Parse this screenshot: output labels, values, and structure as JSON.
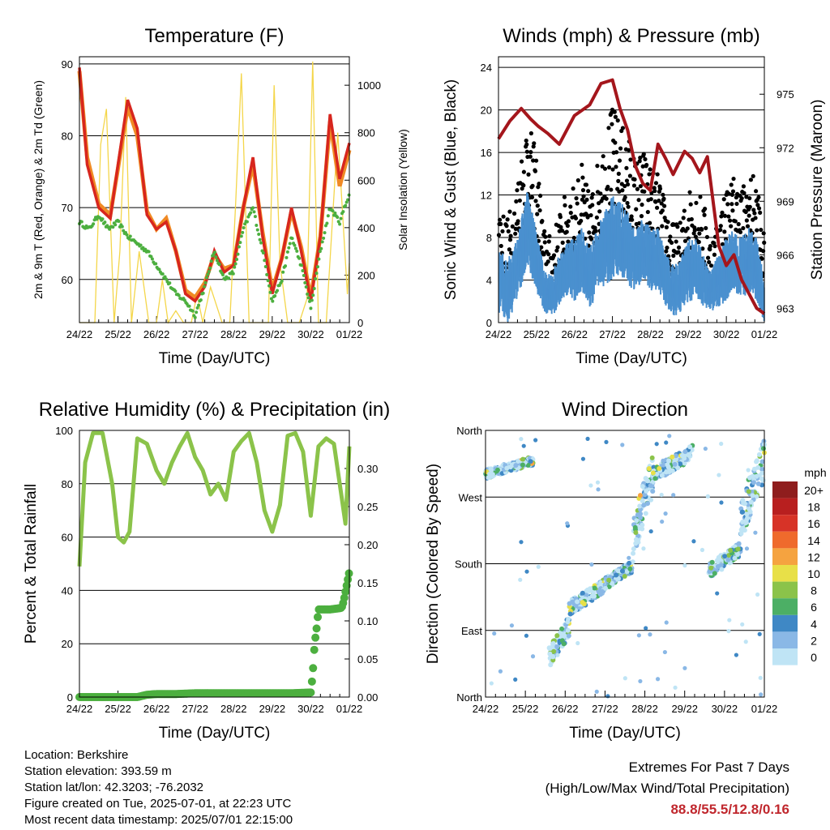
{
  "chart_data": [
    {
      "type": "line",
      "title": "Temperature (F)",
      "xlabel": "Time (Day/UTC)",
      "ylabel": "2m & 9m T (Red, Orange) & 2m Td (Green)",
      "ylabel_right": "Solar Insolation (Yellow)",
      "xticks": [
        "24/22",
        "25/22",
        "26/22",
        "27/22",
        "28/22",
        "29/22",
        "30/22",
        "01/22"
      ],
      "ylim": [
        54,
        91
      ],
      "yticks": [
        60,
        70,
        80,
        90
      ],
      "ylim_right": [
        0,
        1120
      ],
      "yticks_right": [
        0,
        200,
        400,
        600,
        800,
        1000
      ],
      "grid": true,
      "colors": {
        "t2m": "#d7261e",
        "t9m": "#f08a24",
        "td": "#4caf3f",
        "solar": "#f4d64a"
      },
      "series": [
        {
          "name": "2m T",
          "axis": "left",
          "x": [
            0,
            0.2,
            0.5,
            0.8,
            1.0,
            1.25,
            1.5,
            1.75,
            2.0,
            2.25,
            2.5,
            2.75,
            3.0,
            3.25,
            3.5,
            3.75,
            4.0,
            4.25,
            4.5,
            4.75,
            5.0,
            5.25,
            5.5,
            5.75,
            6.0,
            6.25,
            6.5,
            6.75,
            7.0
          ],
          "y": [
            89.5,
            76,
            70,
            68.5,
            76,
            85,
            81,
            69,
            67,
            68,
            64,
            58,
            57,
            59,
            64,
            61,
            62,
            70,
            77,
            66,
            58,
            63,
            70,
            64,
            57,
            66,
            83,
            74,
            79
          ]
        },
        {
          "name": "9m T",
          "axis": "left",
          "x": [
            0,
            0.2,
            0.5,
            0.8,
            1.0,
            1.25,
            1.5,
            1.75,
            2.0,
            2.25,
            2.5,
            2.75,
            3.0,
            3.25,
            3.5,
            3.75,
            4.0,
            4.25,
            4.5,
            4.75,
            5.0,
            5.25,
            5.5,
            5.75,
            6.0,
            6.25,
            6.5,
            6.75,
            7.0
          ],
          "y": [
            89,
            77,
            70.5,
            69,
            75.5,
            84,
            80,
            69.5,
            67,
            68.5,
            64,
            58.5,
            57.5,
            59.5,
            63.5,
            61.5,
            62,
            70,
            76,
            66.5,
            58.5,
            63,
            69.5,
            64.5,
            57.5,
            66,
            82,
            73,
            78
          ]
        },
        {
          "name": "2m Td",
          "axis": "left",
          "x": [
            0,
            0.25,
            0.5,
            0.75,
            1.0,
            1.25,
            1.5,
            1.75,
            2.0,
            2.25,
            2.5,
            2.75,
            3.0,
            3.25,
            3.5,
            3.75,
            4.0,
            4.25,
            4.5,
            4.75,
            5.0,
            5.25,
            5.5,
            5.75,
            6.0,
            6.25,
            6.5,
            6.75,
            7.0
          ],
          "y": [
            68,
            67,
            69,
            67,
            68,
            66,
            65,
            64,
            62,
            60,
            58,
            57,
            55,
            59,
            64,
            60,
            61,
            67,
            70,
            64,
            57,
            60,
            66,
            62,
            56,
            64,
            70,
            68,
            72
          ]
        },
        {
          "name": "Solar Insolation",
          "axis": "right",
          "x": [
            0,
            0.4,
            0.55,
            0.7,
            0.9,
            1.05,
            1.2,
            1.35,
            1.55,
            1.8,
            2.0,
            2.15,
            2.3,
            2.5,
            2.7,
            2.9,
            3.05,
            3.2,
            3.4,
            3.7,
            3.9,
            4.05,
            4.2,
            4.4,
            4.7,
            4.9,
            5.05,
            5.2,
            5.4,
            5.7,
            5.9,
            6.05,
            6.2,
            6.4,
            6.7,
            6.95,
            7.0
          ],
          "y": [
            0,
            0,
            750,
            900,
            0,
            300,
            950,
            0,
            300,
            0,
            0,
            180,
            0,
            50,
            0,
            0,
            120,
            0,
            150,
            0,
            0,
            500,
            1050,
            0,
            0,
            0,
            1000,
            250,
            0,
            0,
            100,
            1100,
            0,
            0,
            800,
            120,
            250
          ]
        }
      ]
    },
    {
      "type": "scatter",
      "title": "Winds (mph) & Pressure (mb)",
      "xlabel": "Time (Day/UTC)",
      "ylabel": "Sonic Wind & Gust (Blue, Black)",
      "ylabel_right": "Station Pressure (Maroon)",
      "xticks": [
        "24/22",
        "25/22",
        "26/22",
        "27/22",
        "28/22",
        "29/22",
        "30/22",
        "01/22"
      ],
      "ylim": [
        0,
        25
      ],
      "yticks": [
        0,
        4,
        8,
        12,
        16,
        20,
        24
      ],
      "ylim_right": [
        962.2,
        977.1
      ],
      "yticks_right": [
        963,
        966,
        969,
        972,
        975
      ],
      "grid": true,
      "colors": {
        "wind": "#4a90cf",
        "gust": "#000000",
        "pressure": "#a4161c"
      },
      "pressure": {
        "name": "Station Pressure",
        "x": [
          0,
          0.3,
          0.6,
          0.85,
          1.05,
          1.3,
          1.6,
          2.0,
          2.4,
          2.7,
          3.0,
          3.2,
          3.4,
          3.6,
          3.8,
          4.0,
          4.2,
          4.4,
          4.6,
          4.9,
          5.1,
          5.3,
          5.5,
          5.8,
          6.0,
          6.2,
          6.4,
          6.6,
          6.8,
          7.0
        ],
        "y": [
          972.5,
          973.5,
          974.2,
          973.6,
          973.2,
          972.8,
          972.2,
          973.8,
          974.4,
          975.6,
          975.8,
          974.2,
          973.0,
          971.0,
          970.0,
          969.6,
          972.2,
          971.4,
          970.5,
          971.8,
          971.4,
          970.6,
          971.5,
          966.5,
          965.4,
          966.0,
          964.6,
          963.8,
          963.0,
          962.7
        ]
      },
      "wind_envelope": {
        "x": [
          0,
          0.25,
          0.5,
          0.75,
          1.0,
          1.2,
          1.4,
          1.6,
          1.8,
          2.0,
          2.2,
          2.4,
          2.6,
          2.8,
          3.0,
          3.2,
          3.4,
          3.6,
          3.8,
          4.0,
          4.2,
          4.4,
          4.6,
          4.8,
          5.0,
          5.2,
          5.4,
          5.6,
          5.8,
          6.0,
          6.2,
          6.4,
          6.6,
          6.8,
          7.0
        ],
        "mean": [
          4,
          3,
          5,
          9,
          6,
          3,
          2.5,
          4,
          5,
          5,
          6,
          4,
          6,
          7,
          8,
          8,
          7,
          6,
          7,
          6,
          6,
          4,
          3,
          3.5,
          5,
          5,
          4,
          3,
          4,
          5,
          6,
          5,
          6,
          5,
          2
        ],
        "spread": [
          3,
          3,
          3,
          3.5,
          3,
          2,
          2,
          2.5,
          2.5,
          3,
          3,
          3,
          3,
          3.5,
          4,
          3.5,
          3.5,
          3,
          3,
          3,
          3,
          2.5,
          2.5,
          2.5,
          3,
          3,
          2.5,
          2,
          2.5,
          3,
          3,
          3,
          3,
          3,
          2
        ]
      },
      "gust_envelope": {
        "x": [
          0,
          0.25,
          0.5,
          0.75,
          1.0,
          1.2,
          1.4,
          1.6,
          1.8,
          2.0,
          2.2,
          2.4,
          2.6,
          2.8,
          3.0,
          3.2,
          3.4,
          3.6,
          3.8,
          4.0,
          4.2,
          4.4,
          4.6,
          4.8,
          5.0,
          5.2,
          5.4,
          5.6,
          5.8,
          6.0,
          6.2,
          6.4,
          6.6,
          6.8,
          7.0
        ],
        "mean": [
          8,
          6,
          10,
          15,
          12,
          6,
          5,
          7,
          9,
          9,
          11,
          8,
          11,
          13,
          15,
          14,
          13,
          11,
          12,
          11,
          10,
          8,
          6,
          6,
          9,
          9,
          8,
          5,
          7,
          9,
          10,
          9,
          10,
          10,
          5
        ],
        "spread": [
          4,
          4,
          4,
          4.5,
          4,
          3,
          3,
          3.5,
          3.5,
          4,
          4,
          4,
          4,
          5,
          5.5,
          5,
          5,
          4.5,
          4.5,
          4,
          4,
          3.5,
          3.5,
          3.5,
          4,
          4,
          3.5,
          3,
          3.5,
          4,
          4,
          4,
          4,
          4,
          3
        ]
      }
    },
    {
      "type": "line",
      "title": "Relative Humidity (%) & Precipitation (in)",
      "xlabel": "Time (Day/UTC)",
      "ylabel": "Percent & Total Rainfall",
      "xticks": [
        "24/22",
        "25/22",
        "26/22",
        "27/22",
        "28/22",
        "29/22",
        "30/22",
        "01/22"
      ],
      "ylim": [
        0,
        100
      ],
      "yticks": [
        0,
        20,
        40,
        60,
        80,
        100
      ],
      "ylim_right": [
        0,
        0.35
      ],
      "yticks_right": [
        "0.00",
        "0.05",
        "0.10",
        "0.15",
        "0.20",
        "0.25",
        "0.30"
      ],
      "grid": true,
      "colors": {
        "rh": "#8bc34a",
        "rain": "#4caf3f"
      },
      "series": [
        {
          "name": "Relative Humidity",
          "axis": "left",
          "x": [
            0,
            0.15,
            0.35,
            0.6,
            0.85,
            1.0,
            1.15,
            1.3,
            1.5,
            1.75,
            2.0,
            2.2,
            2.4,
            2.6,
            2.8,
            3.0,
            3.2,
            3.4,
            3.6,
            3.8,
            4.0,
            4.2,
            4.4,
            4.6,
            4.8,
            5.0,
            5.2,
            5.4,
            5.6,
            5.8,
            6.0,
            6.2,
            6.4,
            6.6,
            6.8,
            6.9,
            7.0
          ],
          "y": [
            49,
            88,
            99,
            99,
            80,
            60,
            58,
            62,
            97,
            95,
            85,
            80,
            88,
            94,
            99,
            90,
            85,
            76,
            80,
            74,
            92,
            96,
            99,
            88,
            70,
            62,
            72,
            98,
            99,
            92,
            68,
            94,
            97,
            95,
            75,
            65,
            94
          ]
        },
        {
          "name": "Total Rainfall",
          "axis": "right",
          "x": [
            0,
            1.0,
            1.5,
            1.75,
            2.0,
            2.5,
            3.0,
            3.5,
            4.0,
            4.5,
            5.0,
            5.5,
            6.0,
            6.05,
            6.1,
            6.15,
            6.2,
            6.5,
            6.8,
            6.85,
            7.0
          ],
          "y": [
            0,
            0,
            0,
            0.003,
            0.004,
            0.004,
            0.005,
            0.005,
            0.005,
            0.005,
            0.005,
            0.005,
            0.006,
            0.03,
            0.07,
            0.09,
            0.115,
            0.115,
            0.117,
            0.125,
            0.165
          ]
        }
      ]
    },
    {
      "type": "scatter",
      "title": "Wind Direction",
      "xlabel": "Time (Day/UTC)",
      "ylabel": "Direction (Colored By Speed)",
      "xticks": [
        "24/22",
        "25/22",
        "26/22",
        "27/22",
        "28/22",
        "29/22",
        "30/22",
        "01/22"
      ],
      "yticks": [
        "North",
        "East",
        "South",
        "West",
        "North"
      ],
      "ylim": [
        0,
        360
      ],
      "grid": true,
      "legend_title": "mph",
      "legend": [
        {
          "label": "20+",
          "color": "#8f1d1d"
        },
        {
          "label": "18",
          "color": "#b81f1f"
        },
        {
          "label": "16",
          "color": "#d73327"
        },
        {
          "label": "14",
          "color": "#ef6a2c"
        },
        {
          "label": "12",
          "color": "#f5a340"
        },
        {
          "label": "10",
          "color": "#e8e048"
        },
        {
          "label": "8",
          "color": "#8bc34a"
        },
        {
          "label": "6",
          "color": "#4caf65"
        },
        {
          "label": "4",
          "color": "#3f88c5"
        },
        {
          "label": "2",
          "color": "#8ab8e6"
        },
        {
          "label": "0",
          "color": "#bfe4f5"
        }
      ],
      "clusters": [
        {
          "x": [
            0,
            1.2
          ],
          "dir": [
            295,
            325
          ]
        },
        {
          "x": [
            1.6,
            2.1
          ],
          "dir": [
            40,
            110
          ]
        },
        {
          "x": [
            2.1,
            3.0
          ],
          "dir": [
            110,
            160
          ]
        },
        {
          "x": [
            3.0,
            3.7
          ],
          "dir": [
            145,
            185
          ]
        },
        {
          "x": [
            3.7,
            4.2
          ],
          "dir": [
            185,
            330
          ]
        },
        {
          "x": [
            4.2,
            5.2
          ],
          "dir": [
            290,
            340
          ]
        },
        {
          "x": [
            5.6,
            6.4
          ],
          "dir": [
            160,
            210
          ]
        },
        {
          "x": [
            6.4,
            7.0
          ],
          "dir": [
            210,
            350
          ]
        }
      ]
    }
  ],
  "info": {
    "location": "Location: Berkshire",
    "elevation": "Station elevation: 393.59 m",
    "latlon": "Station lat/lon: 42.3203; -76.2032",
    "created": "Figure created on Tue, 2025-07-01, at 22:23 UTC",
    "recent": "Most recent data timestamp: 2025/07/01 22:15:00"
  },
  "extremes": {
    "line1": "Extremes For Past 7 Days",
    "line2": "(High/Low/Max Wind/Total Precipitation)",
    "value": "88.8/55.5/12.8/0.16"
  }
}
